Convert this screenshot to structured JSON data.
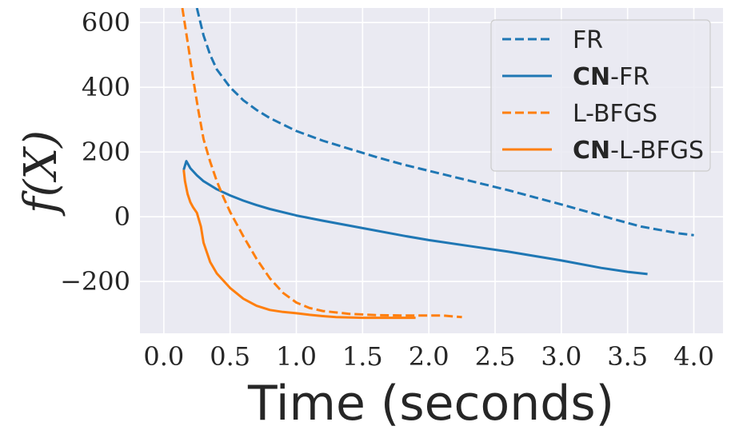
{
  "chart_data": {
    "type": "line",
    "xlabel": "Time (seconds)",
    "ylabel": "f(X)",
    "xlim": [
      -0.18,
      4.22
    ],
    "ylim": [
      -360,
      645
    ],
    "xticks": [
      0.0,
      0.5,
      1.0,
      1.5,
      2.0,
      2.5,
      3.0,
      3.5,
      4.0
    ],
    "xtick_labels": [
      "0.0",
      "0.5",
      "1.0",
      "1.5",
      "2.0",
      "2.5",
      "3.0",
      "3.5",
      "4.0"
    ],
    "yticks": [
      -200,
      0,
      200,
      400,
      600
    ],
    "ytick_labels": [
      "−200",
      "0",
      "200",
      "400",
      "600"
    ],
    "grid": true,
    "legend_position": "top-right",
    "colors": {
      "blue": "#1f77b4",
      "orange": "#ff7f0e",
      "background": "#eaeaf2",
      "grid": "#ffffff",
      "text": "#262626"
    },
    "series": [
      {
        "name": "FR",
        "legend_bold": "",
        "legend_rest": "FR",
        "color": "#1f77b4",
        "dashed": true,
        "x": [
          0.25,
          0.3,
          0.35,
          0.4,
          0.5,
          0.6,
          0.7,
          0.8,
          0.9,
          1.0,
          1.2,
          1.4,
          1.6,
          1.8,
          2.0,
          2.2,
          2.4,
          2.6,
          2.8,
          3.0,
          3.2,
          3.4,
          3.6,
          3.8,
          3.9,
          4.0
        ],
        "y": [
          645,
          560,
          500,
          455,
          400,
          360,
          330,
          305,
          285,
          265,
          235,
          210,
          185,
          162,
          142,
          122,
          102,
          82,
          60,
          38,
          15,
          -8,
          -30,
          -45,
          -52,
          -57
        ]
      },
      {
        "name": "CN-FR",
        "legend_bold": "CN",
        "legend_rest": "-FR",
        "color": "#1f77b4",
        "dashed": false,
        "x": [
          0.15,
          0.17,
          0.2,
          0.25,
          0.3,
          0.4,
          0.5,
          0.6,
          0.7,
          0.8,
          1.0,
          1.2,
          1.5,
          1.8,
          2.0,
          2.3,
          2.6,
          3.0,
          3.3,
          3.5,
          3.65
        ],
        "y": [
          145,
          172,
          150,
          128,
          110,
          85,
          66,
          50,
          36,
          24,
          4,
          -12,
          -35,
          -58,
          -72,
          -90,
          -108,
          -135,
          -158,
          -170,
          -177
        ]
      },
      {
        "name": "L-BFGS",
        "legend_bold": "",
        "legend_rest": "L-BFGS",
        "color": "#ff7f0e",
        "dashed": true,
        "x": [
          0.14,
          0.18,
          0.22,
          0.26,
          0.3,
          0.35,
          0.4,
          0.45,
          0.5,
          0.6,
          0.7,
          0.8,
          0.9,
          1.0,
          1.1,
          1.2,
          1.4,
          1.6,
          1.8,
          2.0,
          2.1,
          2.25
        ],
        "y": [
          645,
          540,
          430,
          330,
          240,
          170,
          110,
          60,
          15,
          -60,
          -130,
          -190,
          -235,
          -265,
          -282,
          -291,
          -300,
          -304,
          -305,
          -305,
          -305,
          -310
        ]
      },
      {
        "name": "CN-L-BFGS",
        "legend_bold": "CN",
        "legend_rest": "-L-BFGS",
        "color": "#ff7f0e",
        "dashed": false,
        "x": [
          0.15,
          0.16,
          0.18,
          0.2,
          0.22,
          0.25,
          0.28,
          0.3,
          0.35,
          0.4,
          0.5,
          0.6,
          0.7,
          0.8,
          0.9,
          1.0,
          1.1,
          1.2,
          1.3,
          1.5,
          1.7,
          1.9
        ],
        "y": [
          145,
          110,
          70,
          45,
          30,
          12,
          -30,
          -80,
          -140,
          -175,
          -220,
          -253,
          -275,
          -288,
          -294,
          -298,
          -303,
          -307,
          -310,
          -312,
          -312,
          -312
        ]
      }
    ]
  }
}
